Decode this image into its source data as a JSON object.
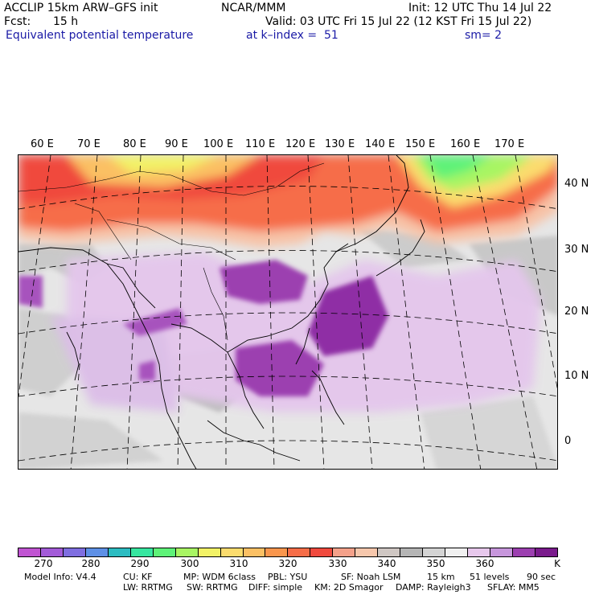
{
  "header": {
    "model": "ACCLIP 15km ARW–GFS init",
    "org": "NCAR/MMM",
    "init": "Init: 12 UTC Thu 14 Jul 22",
    "fcst_label": "Fcst:",
    "fcst_value": "15 h",
    "valid": "Valid: 03 UTC Fri 15 Jul 22 (12 KST Fri 15 Jul 22)",
    "field": "Equivalent potential temperature",
    "level": "at k–index =  51",
    "smoothing": "sm= 2"
  },
  "map": {
    "lon_labels": [
      "60 E",
      "70 E",
      "80 E",
      "90 E",
      "100 E",
      "110 E",
      "120 E",
      "130 E",
      "140 E",
      "150 E",
      "160 E",
      "170 E"
    ],
    "lat_labels": [
      "40 N",
      "30 N",
      "20 N",
      "10 N",
      "0"
    ]
  },
  "colorbar": {
    "colors": [
      "#c054d2",
      "#a35bd8",
      "#7f6ee0",
      "#5e90e6",
      "#2cbcc1",
      "#37e6a0",
      "#5ef278",
      "#a8f563",
      "#f2f266",
      "#fbdc6e",
      "#fbc064",
      "#f9964d",
      "#f66d48",
      "#f04a3e",
      "#f4a18a",
      "#f6c7ac",
      "#cfc7c3",
      "#b5b5b5",
      "#d4d4d4",
      "#f0f0f0",
      "#e7c8ec",
      "#c796dc",
      "#9c3fb0",
      "#7a1b8c"
    ],
    "labels": [
      "270",
      "280",
      "290",
      "300",
      "310",
      "320",
      "330",
      "340",
      "350",
      "360"
    ],
    "unit": "K"
  },
  "footer": {
    "line1": [
      "Model Info: V4.4",
      "CU: KF",
      "MP: WDM 6class",
      "PBL: YSU",
      "SF: Noah LSM",
      "15 km",
      "51 levels",
      "90 sec"
    ],
    "line2": [
      "LW: RRTMG",
      "SW: RRTMG",
      "DIFF: simple",
      "KM: 2D Smagor",
      "DAMP: Rayleigh3",
      "SFLAY: MM5"
    ]
  }
}
